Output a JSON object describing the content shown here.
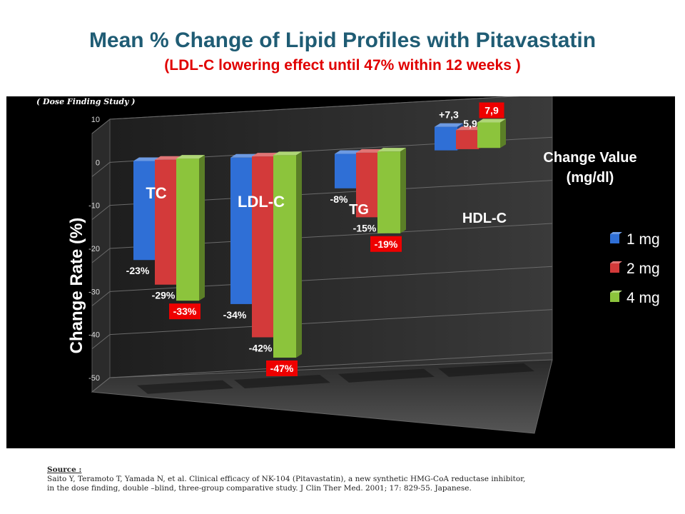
{
  "title": "Mean % Change of Lipid Profiles with Pitavastatin",
  "subtitle": "(LDL-C lowering  effect until 47% within 12 weeks )",
  "chart_data": {
    "type": "bar",
    "note": "( Dose Finding Study )",
    "ylabel": "Change Rate (%)",
    "ylim": [
      -50,
      10
    ],
    "yticks": [
      "10",
      "0",
      "-10",
      "-20",
      "-30",
      "-40",
      "-50"
    ],
    "grid": true,
    "categories": [
      "TC",
      "LDL-C",
      "TG",
      "HDL-C"
    ],
    "series": [
      {
        "name": "1 mg",
        "color": "#2f6fd6",
        "values": [
          -23,
          -34,
          -8,
          7.3
        ],
        "labels": [
          "-23%",
          "-34%",
          "-8%",
          "+7,3"
        ]
      },
      {
        "name": "2 mg",
        "color": "#d33a3a",
        "values": [
          -29,
          -42,
          -15,
          5.9
        ],
        "labels": [
          "-29%",
          "-42%",
          "-15%",
          "5,9"
        ]
      },
      {
        "name": "4 mg",
        "color": "#8cc43c",
        "values": [
          -33,
          -47,
          -19,
          7.9
        ],
        "labels": [
          "-33%",
          "-47%",
          "-19%",
          "7,9"
        ]
      }
    ],
    "highlight_color": "#ee0000",
    "hdl_note_line1": "Change Value",
    "hdl_note_line2": "(mg/dl)",
    "legend_position": "right"
  },
  "source": {
    "heading": "Source :",
    "line1": "Saito Y, Teramoto T, Yamada N, et al. Clinical efficacy of NK-104 (Pitavastatin), a new synthetic HMG-CoA reductase inhibitor,",
    "line2": "in the dose finding, double –blind, three-group comparative study. J Clin Ther Med. 2001;  17:  829-55.  Japanese."
  }
}
